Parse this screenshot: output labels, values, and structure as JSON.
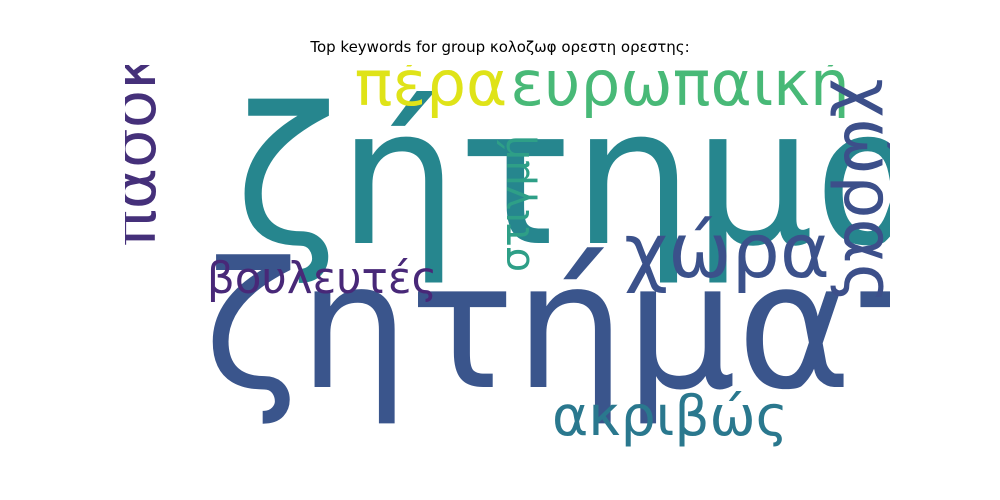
{
  "title": "Top keywords for group κολοζωφ ορεστη ορεστης:",
  "words": [
    {
      "text": "ζήτημα",
      "weight": 1.0,
      "color": "#26868e",
      "orientation": "horizontal"
    },
    {
      "text": "ζητήματα",
      "weight": 0.92,
      "color": "#3a558c",
      "orientation": "horizontal"
    },
    {
      "text": "ευρωπαϊκή",
      "weight": 0.33,
      "color": "#48b977",
      "orientation": "horizontal"
    },
    {
      "text": "πέρα",
      "weight": 0.33,
      "color": "#dfe318",
      "orientation": "horizontal"
    },
    {
      "text": "πασοκ",
      "weight": 0.33,
      "color": "#45307a",
      "orientation": "vertical"
    },
    {
      "text": "χώρας",
      "weight": 0.36,
      "color": "#3c4f8a",
      "orientation": "vertical"
    },
    {
      "text": "χώρα",
      "weight": 0.4,
      "color": "#3b518b",
      "orientation": "horizontal"
    },
    {
      "text": "ακριβώς",
      "weight": 0.29,
      "color": "#2a788e",
      "orientation": "horizontal"
    },
    {
      "text": "βουλευτές",
      "weight": 0.23,
      "color": "#482878",
      "orientation": "horizontal"
    },
    {
      "text": "στιγμή",
      "weight": 0.21,
      "color": "#2e9f87",
      "orientation": "vertical"
    }
  ]
}
